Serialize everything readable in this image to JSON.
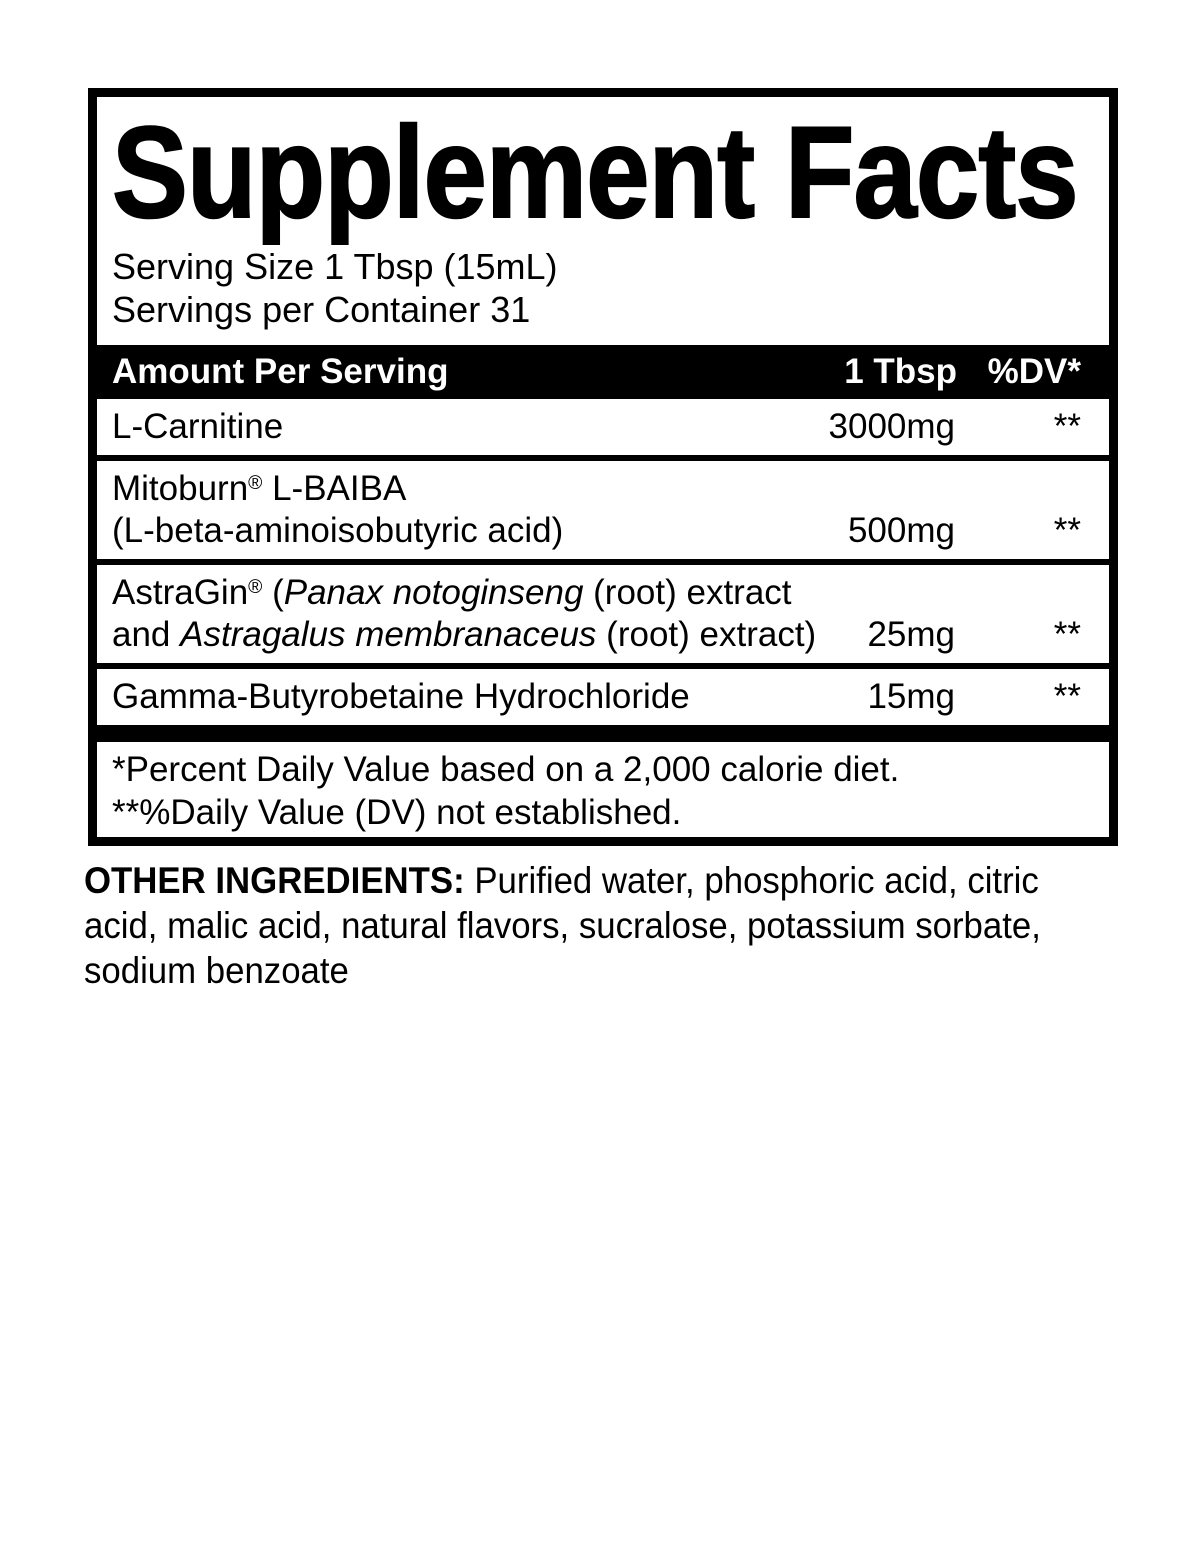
{
  "page": {
    "background_color": "#ffffff",
    "text_color": "#000000"
  },
  "supplement_facts": {
    "title": "Supplement Facts",
    "serving_size": "Serving Size 1 Tbsp (15mL)",
    "servings_per_container": "Servings per Container 31",
    "header": {
      "amount_per_serving": "Amount Per Serving",
      "serving_column": "1 Tbsp",
      "dv_column": "%DV*"
    },
    "ingredients": [
      {
        "lines": [
          [
            {
              "t": "L-Carnitine"
            }
          ]
        ],
        "amount": "3000mg",
        "dv": "**"
      },
      {
        "lines": [
          [
            {
              "t": "Mitoburn"
            },
            {
              "t": "®",
              "sup": true
            },
            {
              "t": " L-BAIBA"
            }
          ],
          [
            {
              "t": "(L-beta-aminoisobutyric acid)"
            }
          ]
        ],
        "amount": "500mg",
        "dv": "**"
      },
      {
        "lines": [
          [
            {
              "t": "AstraGin"
            },
            {
              "t": "®",
              "sup": true
            },
            {
              "t": " ("
            },
            {
              "t": "Panax notoginseng",
              "italic": true
            },
            {
              "t": " (root) extract"
            }
          ],
          [
            {
              "t": "and "
            },
            {
              "t": "Astragalus membranaceus",
              "italic": true
            },
            {
              "t": " (root) extract)"
            }
          ]
        ],
        "amount": "25mg",
        "dv": "**"
      },
      {
        "lines": [
          [
            {
              "t": "Gamma-Butyrobetaine Hydrochloride"
            }
          ]
        ],
        "amount": "15mg",
        "dv": "**"
      }
    ],
    "footnotes": [
      "*Percent Daily Value based on a 2,000 calorie diet.",
      "**%Daily Value (DV) not established."
    ]
  },
  "other_ingredients": {
    "label": "OTHER INGREDIENTS:",
    "text": "Purified water, phosphoric acid, citric acid, malic acid, natural flavors, sucralose, potassium sorbate, sodium benzoate"
  }
}
